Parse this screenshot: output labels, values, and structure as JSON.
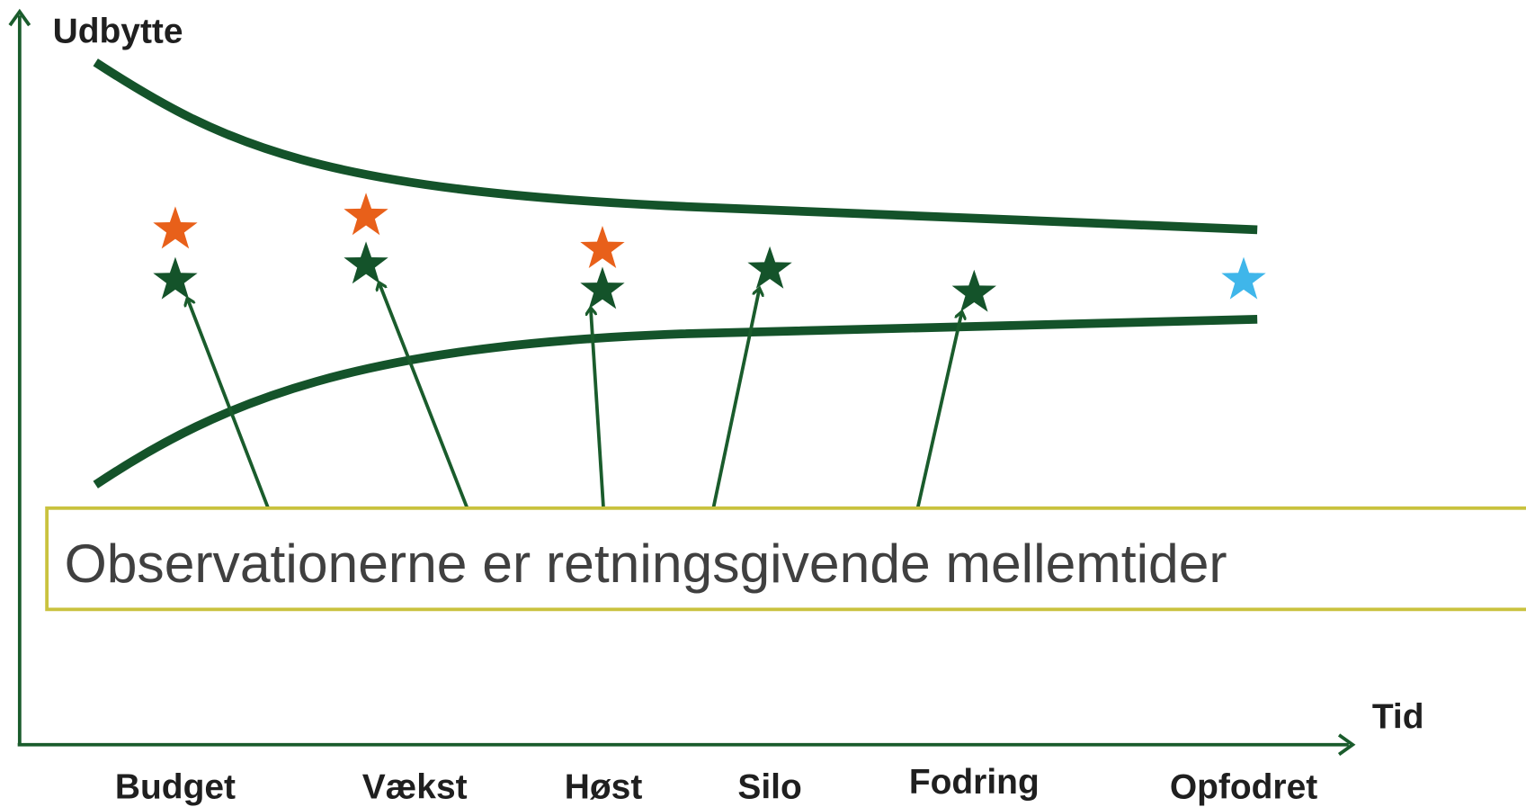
{
  "axes": {
    "y_label": "Udbytte",
    "x_label": "Tid"
  },
  "categories": [
    "Budget",
    "Vækst",
    "Høst",
    "Silo",
    "Fodring",
    "Opfodret"
  ],
  "callout": "Observationerne er retningsgivende mellemtider"
}
